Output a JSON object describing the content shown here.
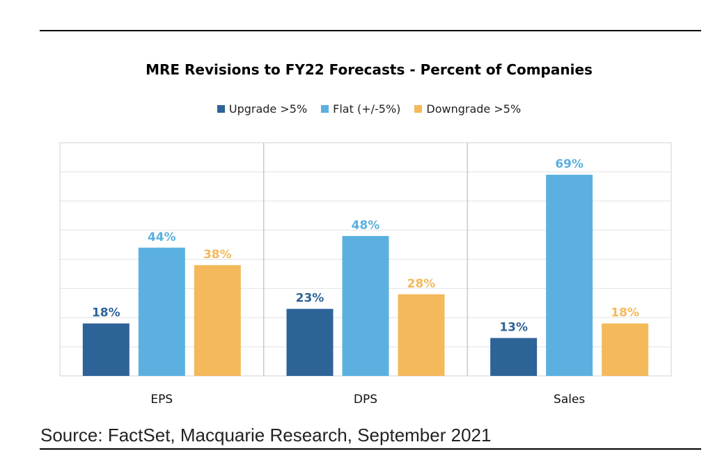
{
  "chart_data": {
    "type": "bar",
    "title": "MRE Revisions to FY22 Forecasts - Percent of Companies",
    "categories": [
      "EPS",
      "DPS",
      "Sales"
    ],
    "series": [
      {
        "name": "Upgrade >5%",
        "values": [
          18,
          23,
          13
        ],
        "labels": [
          "18%",
          "23%",
          "13%"
        ],
        "color": "#2e6398"
      },
      {
        "name": "Flat (+/-5%)",
        "values": [
          44,
          48,
          69
        ],
        "labels": [
          "44%",
          "48%",
          "69%"
        ],
        "color": "#5bb0e0"
      },
      {
        "name": "Downgrade >5%",
        "values": [
          38,
          28,
          18
        ],
        "labels": [
          "38%",
          "28%",
          "18%"
        ],
        "color": "#f4b95b"
      }
    ],
    "xlabel": "",
    "ylabel": "",
    "ylim": [
      0,
      80
    ],
    "grid": true,
    "legend_position": "top"
  },
  "source_note": "Source: FactSet, Macquarie Research, September 2021"
}
